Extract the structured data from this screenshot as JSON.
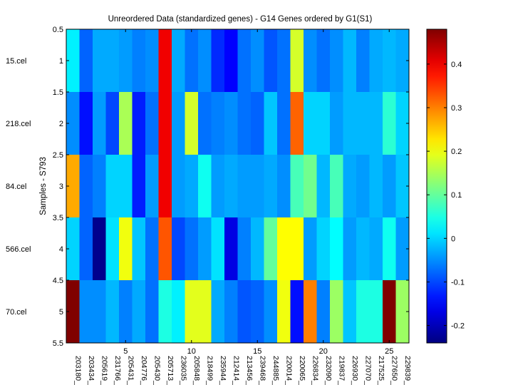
{
  "chart_data": {
    "type": "heatmap",
    "title": "Unreordered Data (standardized genes) - G14 Genes ordered by G1(S1)",
    "ylabel": "Samples - S793",
    "xlabel": "",
    "rows": [
      "15.cel",
      "218.cel",
      "84.cel",
      "566.cel",
      "70.cel"
    ],
    "columns": [
      "203180_",
      "203434_",
      "205619_",
      "231766_",
      "205431_",
      "204776_",
      "205430_",
      "205713_",
      "236035_",
      "205848_",
      "218499_",
      "235944_",
      "212414_",
      "213456_",
      "239468_",
      "244885_",
      "220014_",
      "220065_",
      "226834_",
      "232090_",
      "219837_",
      "226930_",
      "227070_",
      "217525_",
      "227650_",
      "229839_"
    ],
    "x_ticks": [
      "5",
      "10",
      "15",
      "20",
      "25"
    ],
    "x_tick_positions": [
      5,
      10,
      15,
      20,
      25
    ],
    "y_ticks": [
      "0.5",
      "1",
      "1.5",
      "2",
      "2.5",
      "3",
      "3.5",
      "4",
      "4.5",
      "5",
      "5.5"
    ],
    "y_tick_positions": [
      0.5,
      1,
      1.5,
      2,
      2.5,
      3,
      3.5,
      4,
      4.5,
      5,
      5.5
    ],
    "xlim": [
      0.5,
      26.5
    ],
    "ylim": [
      0.5,
      5.5
    ],
    "colorbar": {
      "colormap": "jet",
      "min": -0.24,
      "max": 0.48,
      "ticks": [
        "-0.2",
        "-0.1",
        "0",
        "0.1",
        "0.2",
        "0.3",
        "0.4"
      ],
      "tick_values": [
        -0.2,
        -0.1,
        0,
        0.1,
        0.2,
        0.3,
        0.4
      ]
    },
    "values": [
      [
        0.02,
        -0.08,
        -0.03,
        -0.03,
        -0.04,
        -0.06,
        -0.05,
        0.4,
        -0.03,
        -0.07,
        -0.05,
        -0.12,
        -0.15,
        -0.07,
        -0.05,
        -0.09,
        -0.07,
        0.18,
        -0.05,
        -0.07,
        -0.05,
        -0.02,
        -0.06,
        -0.03,
        -0.02,
        -0.03
      ],
      [
        -0.05,
        -0.14,
        -0.04,
        -0.1,
        0.15,
        -0.13,
        -0.07,
        0.4,
        -0.04,
        0.18,
        -0.07,
        -0.06,
        -0.05,
        -0.07,
        -0.08,
        -0.01,
        -0.07,
        0.32,
        0.0,
        0.0,
        -0.04,
        -0.02,
        -0.02,
        -0.02,
        0.06,
        0.0
      ],
      [
        0.27,
        -0.08,
        -0.06,
        0.0,
        0.0,
        -0.13,
        -0.04,
        0.4,
        -0.04,
        -0.03,
        0.04,
        -0.04,
        -0.03,
        -0.04,
        -0.04,
        -0.03,
        -0.05,
        0.08,
        0.11,
        -0.02,
        0.08,
        -0.03,
        -0.04,
        -0.02,
        -0.04,
        -0.01
      ],
      [
        0.0,
        -0.08,
        -0.23,
        0.01,
        0.2,
        -0.01,
        -0.07,
        0.33,
        -0.1,
        -0.07,
        -0.04,
        0.01,
        -0.17,
        -0.06,
        -0.02,
        0.1,
        0.21,
        0.21,
        -0.04,
        0.0,
        0.03,
        -0.04,
        -0.02,
        -0.03,
        0.04,
        -0.04
      ],
      [
        0.48,
        -0.05,
        -0.05,
        -0.02,
        -0.06,
        -0.03,
        -0.07,
        0.05,
        0.02,
        0.19,
        0.19,
        -0.03,
        -0.06,
        -0.09,
        -0.08,
        -0.05,
        0.2,
        -0.14,
        0.3,
        -0.06,
        0.14,
        -0.01,
        0.05,
        0.05,
        0.48,
        0.14
      ]
    ]
  }
}
